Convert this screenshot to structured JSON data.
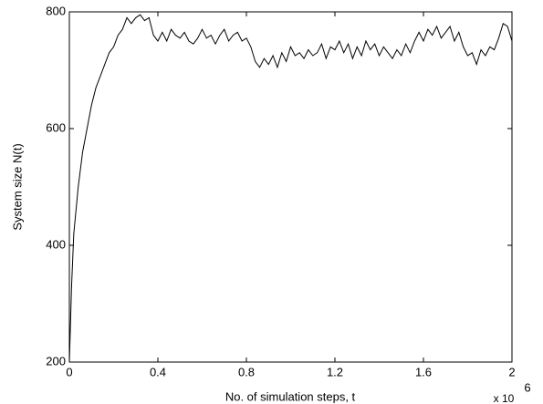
{
  "chart_data": {
    "type": "line",
    "xlabel": "No. of simulation steps,  t",
    "ylabel": "System size  N(t)",
    "x_multiplier": "x 10",
    "x_multiplier_exponent": "6",
    "xlim": [
      0,
      2
    ],
    "ylim": [
      200,
      800
    ],
    "xticks": [
      0,
      0.4,
      0.8,
      1.2,
      1.6,
      2
    ],
    "yticks": [
      200,
      400,
      600,
      800
    ],
    "grid": false,
    "x": [
      0,
      0.01,
      0.02,
      0.04,
      0.06,
      0.08,
      0.1,
      0.12,
      0.14,
      0.16,
      0.18,
      0.2,
      0.22,
      0.24,
      0.26,
      0.28,
      0.3,
      0.32,
      0.34,
      0.36,
      0.38,
      0.4,
      0.42,
      0.44,
      0.46,
      0.48,
      0.5,
      0.52,
      0.54,
      0.56,
      0.58,
      0.6,
      0.62,
      0.64,
      0.66,
      0.68,
      0.7,
      0.72,
      0.74,
      0.76,
      0.78,
      0.8,
      0.82,
      0.84,
      0.86,
      0.88,
      0.9,
      0.92,
      0.94,
      0.96,
      0.98,
      1.0,
      1.02,
      1.04,
      1.06,
      1.08,
      1.1,
      1.12,
      1.14,
      1.16,
      1.18,
      1.2,
      1.22,
      1.24,
      1.26,
      1.28,
      1.3,
      1.32,
      1.34,
      1.36,
      1.38,
      1.4,
      1.42,
      1.44,
      1.46,
      1.48,
      1.5,
      1.52,
      1.54,
      1.56,
      1.58,
      1.6,
      1.62,
      1.64,
      1.66,
      1.68,
      1.7,
      1.72,
      1.74,
      1.76,
      1.78,
      1.8,
      1.82,
      1.84,
      1.86,
      1.88,
      1.9,
      1.92,
      1.94,
      1.96,
      1.98,
      2.0
    ],
    "series": [
      {
        "name": "N(t)",
        "color": "#000000",
        "values": [
          200,
          330,
          420,
          500,
          560,
          600,
          640,
          670,
          690,
          710,
          730,
          740,
          760,
          770,
          790,
          780,
          790,
          795,
          785,
          790,
          760,
          750,
          765,
          750,
          770,
          760,
          755,
          765,
          750,
          745,
          755,
          770,
          755,
          760,
          745,
          760,
          770,
          750,
          760,
          765,
          750,
          755,
          740,
          715,
          705,
          720,
          710,
          725,
          705,
          730,
          715,
          740,
          725,
          730,
          720,
          735,
          725,
          730,
          745,
          720,
          740,
          735,
          750,
          730,
          745,
          720,
          740,
          725,
          750,
          735,
          745,
          725,
          740,
          730,
          720,
          735,
          725,
          745,
          730,
          750,
          765,
          750,
          770,
          760,
          775,
          755,
          765,
          775,
          750,
          765,
          740,
          725,
          730,
          710,
          735,
          725,
          740,
          735,
          755,
          780,
          775,
          750
        ]
      }
    ]
  }
}
